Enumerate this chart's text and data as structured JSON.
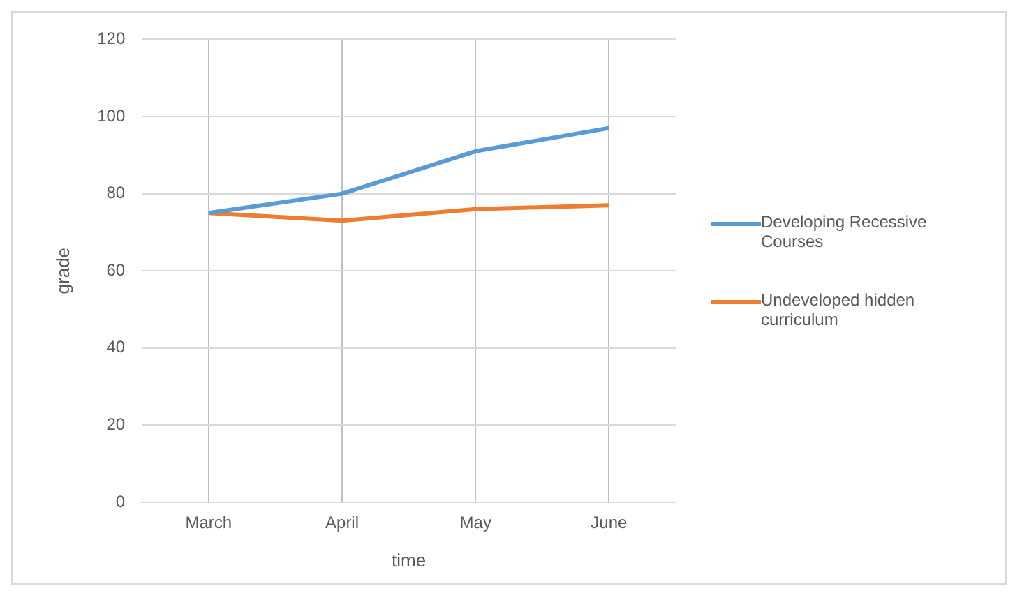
{
  "chart_data": {
    "type": "line",
    "xlabel": "time",
    "ylabel": "grade",
    "categories": [
      "March",
      "April",
      "May",
      "June"
    ],
    "series": [
      {
        "name": "Developing Recessive Courses",
        "color": "#5b9bd5",
        "values": [
          75,
          80,
          91,
          97
        ]
      },
      {
        "name": "Undeveloped hidden curriculum",
        "color": "#ed7d31",
        "values": [
          75,
          73,
          76,
          77
        ]
      }
    ],
    "ylim": [
      0,
      120
    ],
    "yticks": [
      0,
      20,
      40,
      60,
      80,
      100,
      120
    ],
    "grid": true,
    "legend": "right",
    "marker": "none",
    "line_style": "solid"
  }
}
